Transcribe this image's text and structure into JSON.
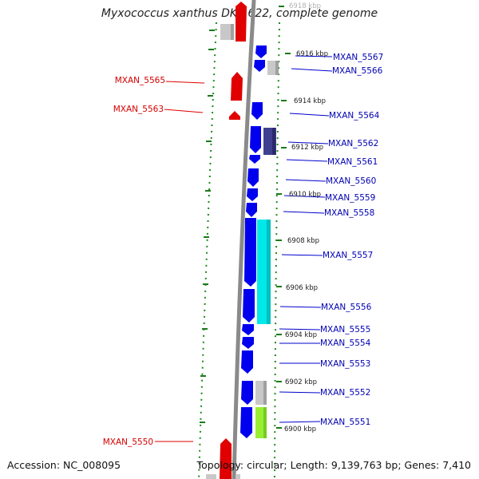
{
  "title": "Myxococcus xanthus DK 1622, complete genome",
  "accession": "Accession: NC_008095",
  "topology": "Topology: circular; Length: 9,139,763 bp; Genes: 7,410",
  "colors": {
    "forward_gene": "#e00000",
    "reverse_gene": "#0000ee",
    "grey_feature": "#c8c8c8",
    "navy_feature": "#404090",
    "cyan_feature": "#00e8e8",
    "green_feature": "#99ee33",
    "backbone": "#8a8a8a",
    "tick": "#1a7a1a"
  },
  "scale_labels": [
    "6918 kbp",
    "6916 kbp",
    "6914 kbp",
    "6912 kbp",
    "6910 kbp",
    "6908 kbp",
    "6906 kbp",
    "6904 kbp",
    "6902 kbp",
    "6900 kbp"
  ],
  "genes_right": [
    "MXAN_5567",
    "MXAN_5566",
    "MXAN_5564",
    "MXAN_5562",
    "MXAN_5561",
    "MXAN_5560",
    "MXAN_5559",
    "MXAN_5558",
    "MXAN_5557",
    "MXAN_5556",
    "MXAN_5555",
    "MXAN_5554",
    "MXAN_5553",
    "MXAN_5552",
    "MXAN_5551"
  ],
  "genes_left": [
    "MXAN_5565",
    "MXAN_5563",
    "MXAN_5550"
  ]
}
